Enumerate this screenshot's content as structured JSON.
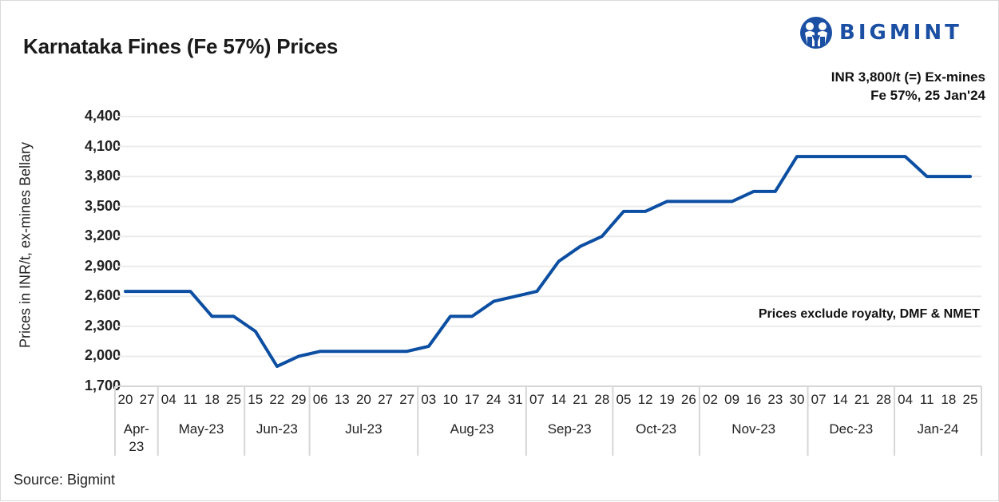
{
  "header": {
    "title": "Karnataka Fines (Fe 57%) Prices",
    "logo_text": "BIGMINT",
    "price_note_line1": "INR 3,800/t (=) Ex-mines",
    "price_note_line2": "Fe 57%, 25 Jan'24"
  },
  "annotation": "Prices exclude royalty, DMF & NMET",
  "footer": {
    "source": "Source: Bigmint"
  },
  "colors": {
    "line": "#0b4ea2",
    "logo": "#1a4fa3",
    "grid": "#ebebeb",
    "axis_box": "#d6d6d6"
  },
  "chart_data": {
    "type": "line",
    "title": "Karnataka Fines (Fe 57%) Prices",
    "xlabel": "",
    "ylabel": "Prices in INR/t, ex-mines Bellary",
    "ylim": [
      1700,
      4400
    ],
    "yticks": [
      "4,400",
      "4,100",
      "3,800",
      "3,500",
      "3,200",
      "2,900",
      "2,600",
      "2,300",
      "2,000",
      "1,700"
    ],
    "grid": true,
    "legend": null,
    "months": [
      {
        "label": "Apr-\n23",
        "days": [
          "20",
          "27"
        ]
      },
      {
        "label": "May-23",
        "days": [
          "04",
          "11",
          "18",
          "25"
        ]
      },
      {
        "label": "Jun-23",
        "days": [
          "15",
          "22",
          "29"
        ]
      },
      {
        "label": "Jul-23",
        "days": [
          "06",
          "13",
          "20",
          "27",
          "27"
        ]
      },
      {
        "label": "Aug-23",
        "days": [
          "03",
          "10",
          "17",
          "24",
          "31"
        ]
      },
      {
        "label": "Sep-23",
        "days": [
          "07",
          "14",
          "21",
          "28"
        ]
      },
      {
        "label": "Oct-23",
        "days": [
          "05",
          "12",
          "19",
          "26"
        ]
      },
      {
        "label": "Nov-23",
        "days": [
          "02",
          "09",
          "16",
          "23",
          "30"
        ]
      },
      {
        "label": "Dec-23",
        "days": [
          "07",
          "14",
          "21",
          "28"
        ]
      },
      {
        "label": "Jan-24",
        "days": [
          "04",
          "11",
          "18",
          "25"
        ]
      }
    ],
    "series": [
      {
        "name": "Karnataka Fines Fe 57%",
        "values": [
          2650,
          2650,
          2650,
          2650,
          2400,
          2400,
          2250,
          1900,
          2000,
          2050,
          2050,
          2050,
          2050,
          2050,
          2100,
          2400,
          2400,
          2550,
          2600,
          2650,
          2950,
          3100,
          3200,
          3450,
          3450,
          3550,
          3550,
          3550,
          3550,
          3650,
          3650,
          4000,
          4000,
          4000,
          4000,
          4000,
          4000,
          3800,
          3800,
          3800
        ]
      }
    ]
  }
}
